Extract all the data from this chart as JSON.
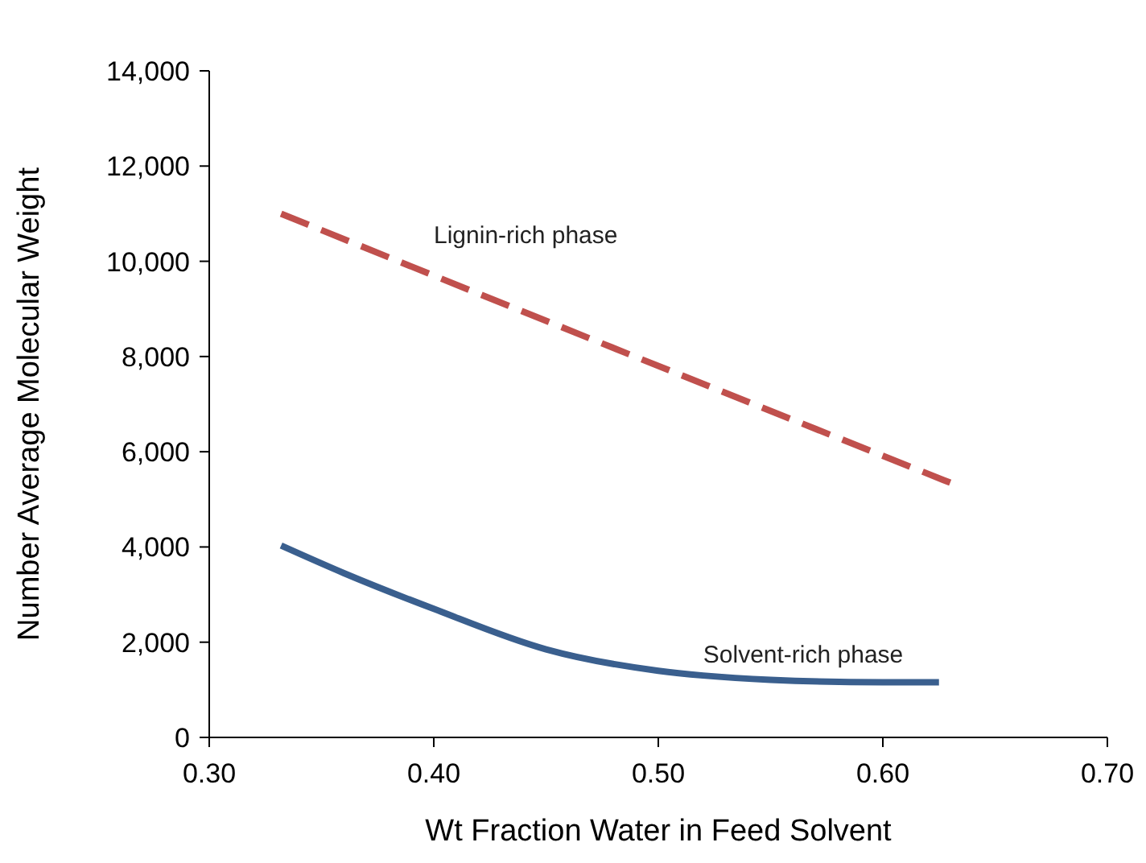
{
  "chart_data": {
    "type": "line",
    "xlabel": "Wt Fraction Water in Feed Solvent",
    "ylabel": "Number Average Molecular Weight",
    "xlim": [
      0.3,
      0.7
    ],
    "xticks": [
      {
        "value": 0.3,
        "label": "0.30"
      },
      {
        "value": 0.4,
        "label": "0.40"
      },
      {
        "value": 0.5,
        "label": "0.50"
      },
      {
        "value": 0.6,
        "label": "0.60"
      },
      {
        "value": 0.7,
        "label": "0.70"
      }
    ],
    "ylim": [
      0,
      14000
    ],
    "yticks": [
      {
        "value": 0,
        "label": "0"
      },
      {
        "value": 2000,
        "label": "2,000"
      },
      {
        "value": 4000,
        "label": "4,000"
      },
      {
        "value": 6000,
        "label": "6,000"
      },
      {
        "value": 8000,
        "label": "8,000"
      },
      {
        "value": 10000,
        "label": "10,000"
      },
      {
        "value": 12000,
        "label": "12,000"
      },
      {
        "value": 14000,
        "label": "14,000"
      }
    ],
    "grid": false,
    "series": [
      {
        "name": "Lignin-rich phase",
        "color": "#c0504d",
        "line_style": "dashed",
        "x": [
          0.332,
          0.4,
          0.63
        ],
        "values": [
          11000,
          9700,
          5350
        ]
      },
      {
        "name": "Solvent-rich phase",
        "color": "#3a5f8e",
        "line_style": "solid",
        "x": [
          0.332,
          0.36,
          0.4,
          0.45,
          0.5,
          0.52,
          0.55,
          0.6,
          0.625
        ],
        "values": [
          4030,
          3450,
          2700,
          1850,
          1400,
          1300,
          1210,
          1160,
          1160
        ]
      }
    ]
  }
}
